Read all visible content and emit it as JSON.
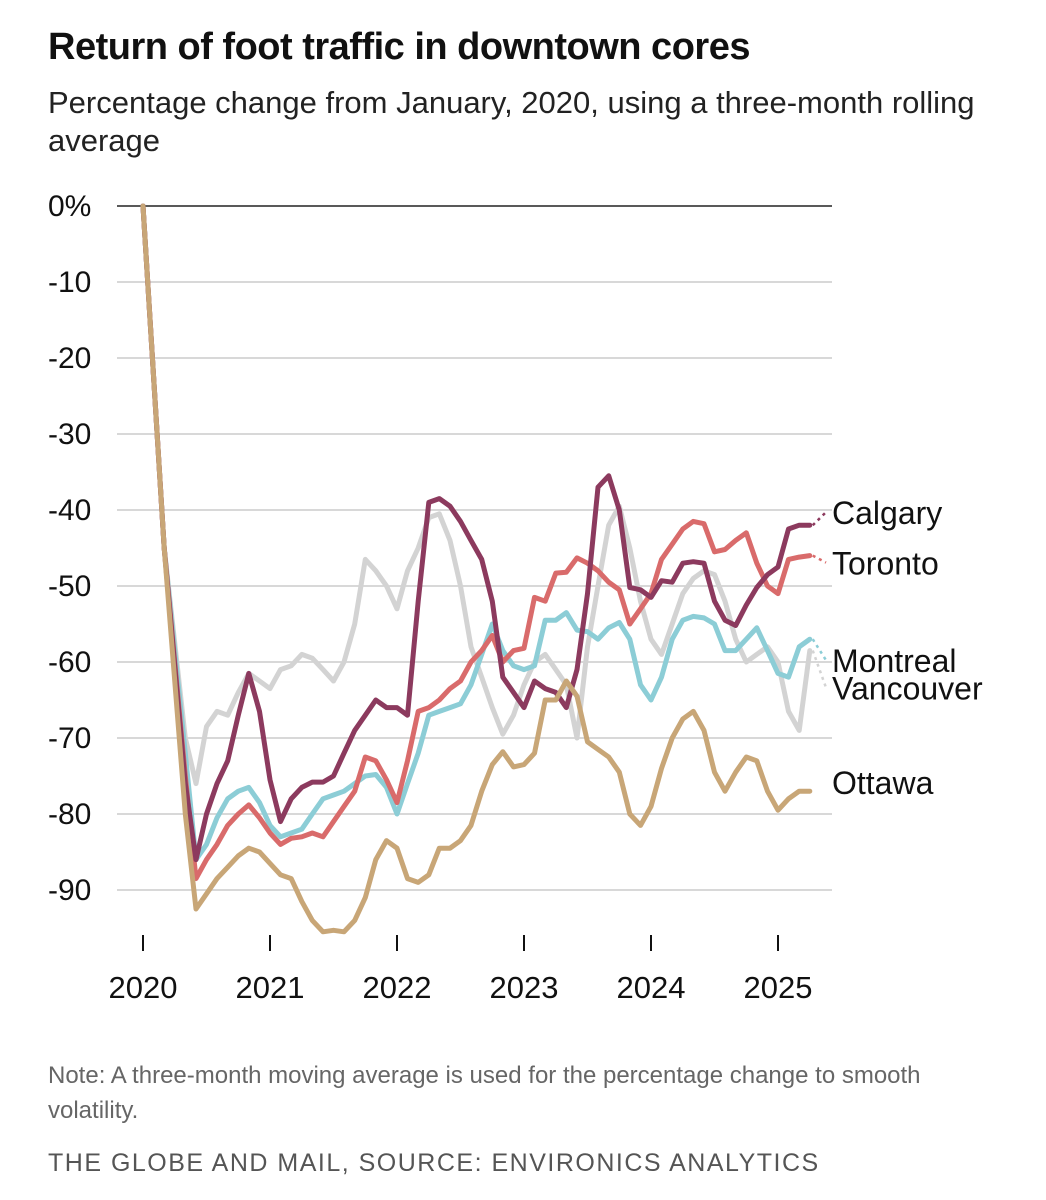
{
  "chart_data": {
    "type": "line",
    "title": "Return of foot traffic in downtown cores",
    "subtitle": "Percentage change from January, 2020, using a three-month rolling average",
    "xlabel": "",
    "ylabel": "",
    "ylim": [
      -96,
      0
    ],
    "y_ticks": [
      {
        "value": 0,
        "label": "0%"
      },
      {
        "value": -10,
        "label": "-10"
      },
      {
        "value": -20,
        "label": "-20"
      },
      {
        "value": -30,
        "label": "-30"
      },
      {
        "value": -40,
        "label": "-40"
      },
      {
        "value": -50,
        "label": "-50"
      },
      {
        "value": -60,
        "label": "-60"
      },
      {
        "value": -70,
        "label": "-70"
      },
      {
        "value": -80,
        "label": "-80"
      },
      {
        "value": -90,
        "label": "-90"
      }
    ],
    "x_ticks": [
      {
        "value": 2020,
        "label": "2020"
      },
      {
        "value": 2021,
        "label": "2021"
      },
      {
        "value": 2022,
        "label": "2022"
      },
      {
        "value": 2023,
        "label": "2023"
      },
      {
        "value": 2024,
        "label": "2024"
      },
      {
        "value": 2025,
        "label": "2025"
      }
    ],
    "xlim": [
      2020,
      2025.5
    ],
    "grid": true,
    "legend": "direct labels at right end of lines",
    "series": [
      {
        "name": "Vancouver",
        "color": "#d3d3d3",
        "x": [
          2020,
          2020.167,
          2020.333,
          2020.417,
          2020.5,
          2020.583,
          2020.667,
          2020.75,
          2020.833,
          2020.917,
          2021,
          2021.083,
          2021.167,
          2021.25,
          2021.333,
          2021.417,
          2021.5,
          2021.583,
          2021.667,
          2021.75,
          2021.833,
          2021.917,
          2022,
          2022.083,
          2022.167,
          2022.25,
          2022.333,
          2022.417,
          2022.5,
          2022.583,
          2022.667,
          2022.75,
          2022.833,
          2022.917,
          2023,
          2023.083,
          2023.167,
          2023.25,
          2023.333,
          2023.417,
          2023.5,
          2023.583,
          2023.667,
          2023.75,
          2023.833,
          2023.917,
          2024,
          2024.083,
          2024.167,
          2024.25,
          2024.333,
          2024.417,
          2024.5,
          2024.583,
          2024.667,
          2024.75,
          2024.833,
          2024.917,
          2025,
          2025.083,
          2025.167,
          2025.25
        ],
        "values": [
          0,
          -45,
          -70,
          -76,
          -68.5,
          -66.5,
          -67,
          -64,
          -61.5,
          -62.5,
          -63.5,
          -61,
          -60.5,
          -59,
          -59.5,
          -61,
          -62.5,
          -60,
          -55,
          -46.5,
          -48,
          -50,
          -53,
          -48,
          -45,
          -41,
          -40.5,
          -44,
          -50,
          -58,
          -62,
          -66,
          -69.5,
          -67,
          -63,
          -60,
          -59,
          -61,
          -63,
          -70,
          -58,
          -50,
          -42,
          -39.5,
          -45,
          -52,
          -57,
          -59,
          -55,
          -51,
          -49,
          -48,
          -48.5,
          -52,
          -57,
          -60,
          -59,
          -58,
          -60,
          -66.5,
          -69,
          -58.5
        ]
      },
      {
        "name": "Montreal",
        "color": "#8ccdd6",
        "x": [
          2020,
          2020.167,
          2020.333,
          2020.417,
          2020.5,
          2020.583,
          2020.667,
          2020.75,
          2020.833,
          2020.917,
          2021,
          2021.083,
          2021.167,
          2021.25,
          2021.333,
          2021.417,
          2021.5,
          2021.583,
          2021.667,
          2021.75,
          2021.833,
          2021.917,
          2022,
          2022.083,
          2022.167,
          2022.25,
          2022.333,
          2022.417,
          2022.5,
          2022.583,
          2022.667,
          2022.75,
          2022.833,
          2022.917,
          2023,
          2023.083,
          2023.167,
          2023.25,
          2023.333,
          2023.417,
          2023.5,
          2023.583,
          2023.667,
          2023.75,
          2023.833,
          2023.917,
          2024,
          2024.083,
          2024.167,
          2024.25,
          2024.333,
          2024.417,
          2024.5,
          2024.583,
          2024.667,
          2024.75,
          2024.833,
          2024.917,
          2025,
          2025.083,
          2025.167,
          2025.25
        ],
        "values": [
          0,
          -45,
          -72,
          -86,
          -84,
          -80.5,
          -78,
          -77,
          -76.5,
          -78.5,
          -81.5,
          -83,
          -82.5,
          -82,
          -80,
          -78,
          -77.5,
          -77,
          -76,
          -75,
          -74.8,
          -76.5,
          -80,
          -76,
          -72,
          -67,
          -66.5,
          -66,
          -65.5,
          -63,
          -59,
          -55,
          -58.5,
          -60.5,
          -61,
          -60.5,
          -54.5,
          -54.5,
          -53.5,
          -55.8,
          -56,
          -57,
          -55.5,
          -54.8,
          -57,
          -63,
          -65,
          -62,
          -57,
          -54.5,
          -54,
          -54.2,
          -55,
          -58.5,
          -58.5,
          -57,
          -55.5,
          -58.5,
          -61.5,
          -62,
          -58,
          -57
        ]
      },
      {
        "name": "Toronto",
        "color": "#d96b6b",
        "x": [
          2020,
          2020.167,
          2020.333,
          2020.417,
          2020.5,
          2020.583,
          2020.667,
          2020.75,
          2020.833,
          2020.917,
          2021,
          2021.083,
          2021.167,
          2021.25,
          2021.333,
          2021.417,
          2021.5,
          2021.583,
          2021.667,
          2021.75,
          2021.833,
          2021.917,
          2022,
          2022.083,
          2022.167,
          2022.25,
          2022.333,
          2022.417,
          2022.5,
          2022.583,
          2022.667,
          2022.75,
          2022.833,
          2022.917,
          2023,
          2023.083,
          2023.167,
          2023.25,
          2023.333,
          2023.417,
          2023.5,
          2023.583,
          2023.667,
          2023.75,
          2023.833,
          2023.917,
          2024,
          2024.083,
          2024.167,
          2024.25,
          2024.333,
          2024.417,
          2024.5,
          2024.583,
          2024.667,
          2024.75,
          2024.833,
          2024.917,
          2025,
          2025.083,
          2025.167,
          2025.25
        ],
        "values": [
          0,
          -45,
          -75,
          -88.5,
          -86,
          -84,
          -81.5,
          -80,
          -78.8,
          -80.5,
          -82.5,
          -84,
          -83.2,
          -83,
          -82.5,
          -83,
          -81,
          -79,
          -77,
          -72.5,
          -73,
          -75.5,
          -78.5,
          -73,
          -66.5,
          -66,
          -65,
          -63.5,
          -62.5,
          -60,
          -58.5,
          -56.5,
          -60,
          -58.5,
          -58.2,
          -51.5,
          -52,
          -48.3,
          -48.2,
          -46.3,
          -47,
          -48,
          -49.5,
          -50.5,
          -55,
          -53,
          -51,
          -46.5,
          -44.5,
          -42.5,
          -41.5,
          -41.8,
          -45.5,
          -45.2,
          -44,
          -43,
          -47,
          -50,
          -51,
          -46.5,
          -46.2,
          -46
        ]
      },
      {
        "name": "Calgary",
        "color": "#8c3a5e",
        "x": [
          2020,
          2020.167,
          2020.333,
          2020.417,
          2020.5,
          2020.583,
          2020.667,
          2020.75,
          2020.833,
          2020.917,
          2021,
          2021.083,
          2021.167,
          2021.25,
          2021.333,
          2021.417,
          2021.5,
          2021.583,
          2021.667,
          2021.75,
          2021.833,
          2021.917,
          2022,
          2022.083,
          2022.167,
          2022.25,
          2022.333,
          2022.417,
          2022.5,
          2022.583,
          2022.667,
          2022.75,
          2022.833,
          2022.917,
          2023,
          2023.083,
          2023.167,
          2023.25,
          2023.333,
          2023.417,
          2023.5,
          2023.583,
          2023.667,
          2023.75,
          2023.833,
          2023.917,
          2024,
          2024.083,
          2024.167,
          2024.25,
          2024.333,
          2024.417,
          2024.5,
          2024.583,
          2024.667,
          2024.75,
          2024.833,
          2024.917,
          2025,
          2025.083,
          2025.167,
          2025.25
        ],
        "values": [
          0,
          -45,
          -76,
          -86,
          -80,
          -76,
          -73,
          -67,
          -61.5,
          -66.5,
          -75.5,
          -81,
          -78,
          -76.5,
          -75.8,
          -75.8,
          -75,
          -72,
          -69,
          -67,
          -65,
          -66,
          -66,
          -67,
          -52,
          -39,
          -38.5,
          -39.5,
          -41.5,
          -44,
          -46.5,
          -52,
          -62,
          -64,
          -66,
          -62.5,
          -63.5,
          -64,
          -66,
          -61,
          -51,
          -37,
          -35.5,
          -40,
          -50.2,
          -50.5,
          -51.5,
          -49.3,
          -49.5,
          -47,
          -46.8,
          -47,
          -52,
          -54.5,
          -55.2,
          -52.5,
          -50.2,
          -48.5,
          -47.5,
          -42.5,
          -42,
          -42
        ]
      },
      {
        "name": "Ottawa",
        "color": "#c8a677",
        "x": [
          2020,
          2020.167,
          2020.333,
          2020.417,
          2020.5,
          2020.583,
          2020.667,
          2020.75,
          2020.833,
          2020.917,
          2021,
          2021.083,
          2021.167,
          2021.25,
          2021.333,
          2021.417,
          2021.5,
          2021.583,
          2021.667,
          2021.75,
          2021.833,
          2021.917,
          2022,
          2022.083,
          2022.167,
          2022.25,
          2022.333,
          2022.417,
          2022.5,
          2022.583,
          2022.667,
          2022.75,
          2022.833,
          2022.917,
          2023,
          2023.083,
          2023.167,
          2023.25,
          2023.333,
          2023.417,
          2023.5,
          2023.583,
          2023.667,
          2023.75,
          2023.833,
          2023.917,
          2024,
          2024.083,
          2024.167,
          2024.25,
          2024.333,
          2024.417,
          2024.5,
          2024.583,
          2024.667,
          2024.75,
          2024.833,
          2024.917,
          2025,
          2025.083,
          2025.167,
          2025.25
        ],
        "values": [
          0,
          -45,
          -80,
          -92.5,
          -90.5,
          -88.5,
          -87,
          -85.5,
          -84.5,
          -85,
          -86.5,
          -88,
          -88.5,
          -91.5,
          -94,
          -95.5,
          -95.3,
          -95.5,
          -94,
          -91,
          -86,
          -83.5,
          -84.5,
          -88.5,
          -89,
          -88,
          -84.5,
          -84.5,
          -83.5,
          -81.5,
          -77,
          -73.5,
          -71.8,
          -73.8,
          -73.5,
          -72,
          -65,
          -65,
          -62.5,
          -64.5,
          -70.5,
          -71.5,
          -72.5,
          -74.5,
          -80,
          -81.5,
          -79,
          -74,
          -70,
          -67.5,
          -66.5,
          -69,
          -74.5,
          -77,
          -74.5,
          -72.5,
          -73,
          -77,
          -79.5,
          -78,
          -77,
          -77
        ]
      }
    ],
    "line_labels": [
      {
        "series": "Calgary",
        "text": "Calgary"
      },
      {
        "series": "Toronto",
        "text": "Toronto"
      },
      {
        "series": "Montreal",
        "text": "Montreal"
      },
      {
        "series": "Vancouver",
        "text": "Vancouver"
      },
      {
        "series": "Ottawa",
        "text": "Ottawa"
      }
    ]
  },
  "note": "Note: A three-month moving average is used for the percentage change to smooth volatility.",
  "credit": "THE GLOBE AND MAIL, SOURCE: ENVIRONICS ANALYTICS"
}
